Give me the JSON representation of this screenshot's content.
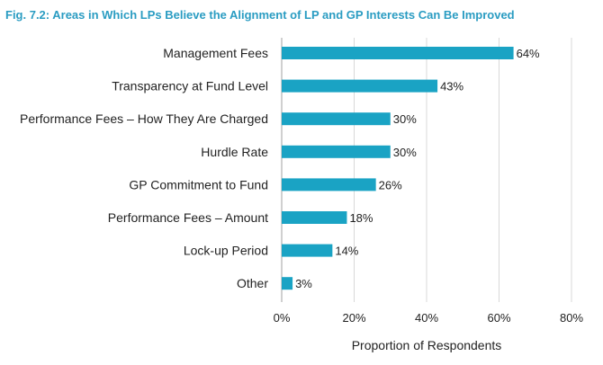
{
  "colors": {
    "title": "#2a9cc2",
    "bar": "#1aa3c4",
    "grid": "#d8d8d8",
    "axis": "#a0a0a0"
  },
  "chart_data": {
    "type": "bar",
    "orientation": "horizontal",
    "title": "Fig. 7.2: Areas in Which LPs Believe the Alignment of LP and GP Interests Can Be Improved",
    "xlabel": "Proportion of Respondents",
    "ylabel": "",
    "categories": [
      "Management Fees",
      "Transparency at Fund Level",
      "Performance Fees – How They Are Charged",
      "Hurdle Rate",
      "GP Commitment to Fund",
      "Performance Fees – Amount",
      "Lock-up Period",
      "Other"
    ],
    "values": [
      64,
      43,
      30,
      30,
      26,
      18,
      14,
      3
    ],
    "value_labels": [
      "64%",
      "43%",
      "30%",
      "30%",
      "26%",
      "18%",
      "14%",
      "3%"
    ],
    "xlim": [
      0,
      80
    ],
    "xticks": [
      0,
      20,
      40,
      60,
      80
    ],
    "xtick_labels": [
      "0%",
      "20%",
      "40%",
      "60%",
      "80%"
    ],
    "grid": "vertical",
    "legend": "none"
  }
}
